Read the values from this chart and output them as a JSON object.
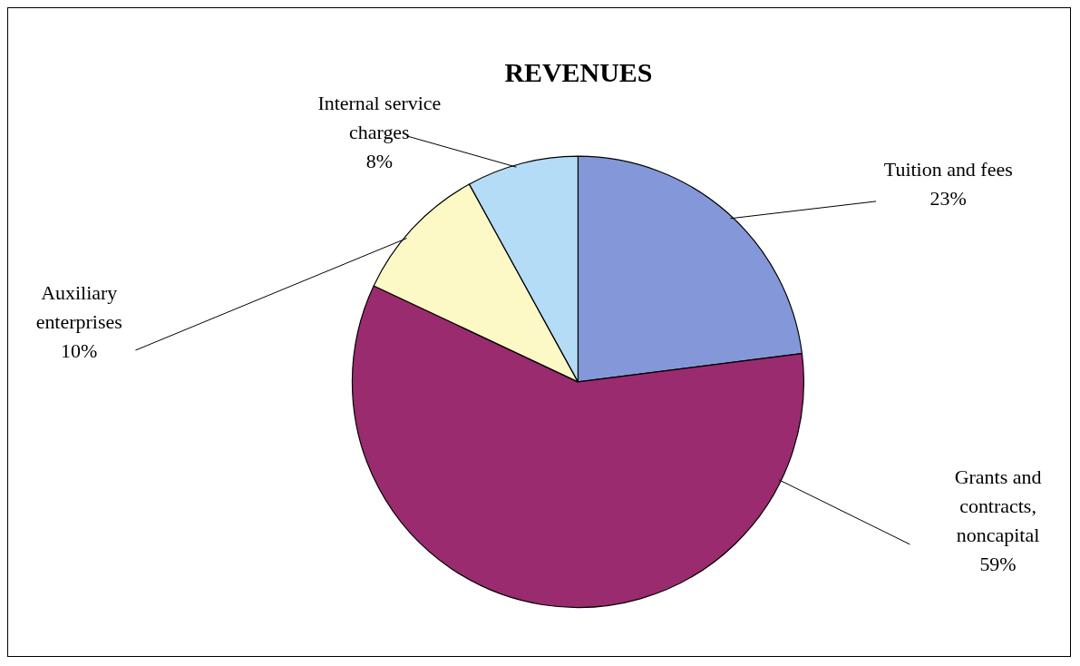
{
  "chart_data": {
    "type": "pie",
    "title": "REVENUES",
    "categories": [
      "Tuition and fees",
      "Grants and contracts, noncapital",
      "Auxiliary enterprises",
      "Internal service charges"
    ],
    "values": [
      23,
      59,
      10,
      8
    ],
    "colors": [
      "#8497d8",
      "#9a2b6f",
      "#fdf9c6",
      "#b4dcf6"
    ],
    "value_labels": [
      "23%",
      "59%",
      "10%",
      "8%"
    ],
    "legend": false
  }
}
